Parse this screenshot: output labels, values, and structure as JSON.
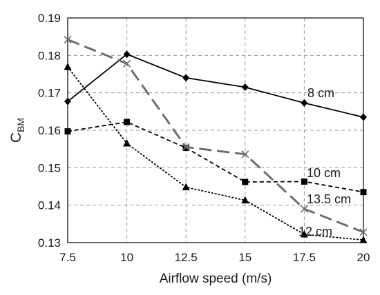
{
  "chart_data": {
    "type": "line",
    "xlabel": "Airflow speed (m/s)",
    "ylabel": "C",
    "ylabel_sub": "BM",
    "x": [
      7.5,
      10,
      12.5,
      15,
      17.5,
      20
    ],
    "x_ticks": [
      "7.5",
      "10",
      "12.5",
      "15",
      "17.5",
      "20"
    ],
    "y_ticks": [
      "0.13",
      "0.14",
      "0.15",
      "0.16",
      "0.17",
      "0.18",
      "0.19"
    ],
    "xlim": [
      7.5,
      20
    ],
    "ylim": [
      0.13,
      0.19
    ],
    "grid": true,
    "series": [
      {
        "name": "8 cm",
        "values": [
          0.1677,
          0.1803,
          0.174,
          0.1715,
          0.1673,
          0.1635
        ],
        "marker": "diamond",
        "line": "solid",
        "color": "#000000"
      },
      {
        "name": "10 cm",
        "values": [
          0.1597,
          0.1622,
          0.1553,
          0.1462,
          0.1463,
          0.1435
        ],
        "marker": "square",
        "line": "dashed",
        "color": "#000000"
      },
      {
        "name": "13.5 cm",
        "values": [
          0.1842,
          0.1778,
          0.1555,
          0.1536,
          0.139,
          0.1328
        ],
        "marker": "x",
        "line": "longdash",
        "color": "#6e6e6e"
      },
      {
        "name": "12 cm",
        "values": [
          0.1769,
          0.1565,
          0.1448,
          0.1413,
          0.1322,
          0.1307
        ],
        "marker": "triangle",
        "line": "dotted",
        "color": "#000000"
      }
    ]
  }
}
